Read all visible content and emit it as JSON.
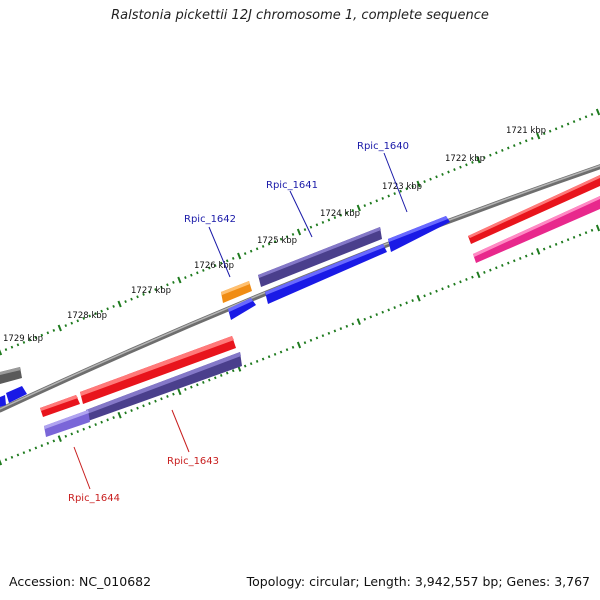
{
  "title": "Ralstonia pickettii 12J chromosome 1, complete sequence",
  "footer": {
    "accession": "Accession: NC_010682",
    "summary": "Topology: circular; Length: 3,942,557 bp; Genes: 3,767"
  },
  "scale_labels": [
    "1721 kbp",
    "1722 kbp",
    "1723 kbp",
    "1724 kbp",
    "1725 kbp",
    "1726 kbp",
    "1727 kbp",
    "1728 kbp",
    "1729 kbp"
  ],
  "gene_labels": {
    "top": [
      "Rpic_1640",
      "Rpic_1641",
      "Rpic_1642"
    ],
    "bottom": [
      "Rpic_1643",
      "Rpic_1644"
    ]
  },
  "colors": {
    "backbone": "#8a8a8a",
    "ticks": "#1e7a1e",
    "label_top": "#1a1aa8",
    "label_bottom": "#c81e1e",
    "gene_red": "#e8141c",
    "gene_blue": "#1a1ae6",
    "gene_indigo": "#4a3f8c",
    "gene_magenta": "#e8288c",
    "gene_orange": "#f08c14",
    "gene_lavender": "#7a66d8",
    "gene_gray": "#5a5a5a"
  }
}
